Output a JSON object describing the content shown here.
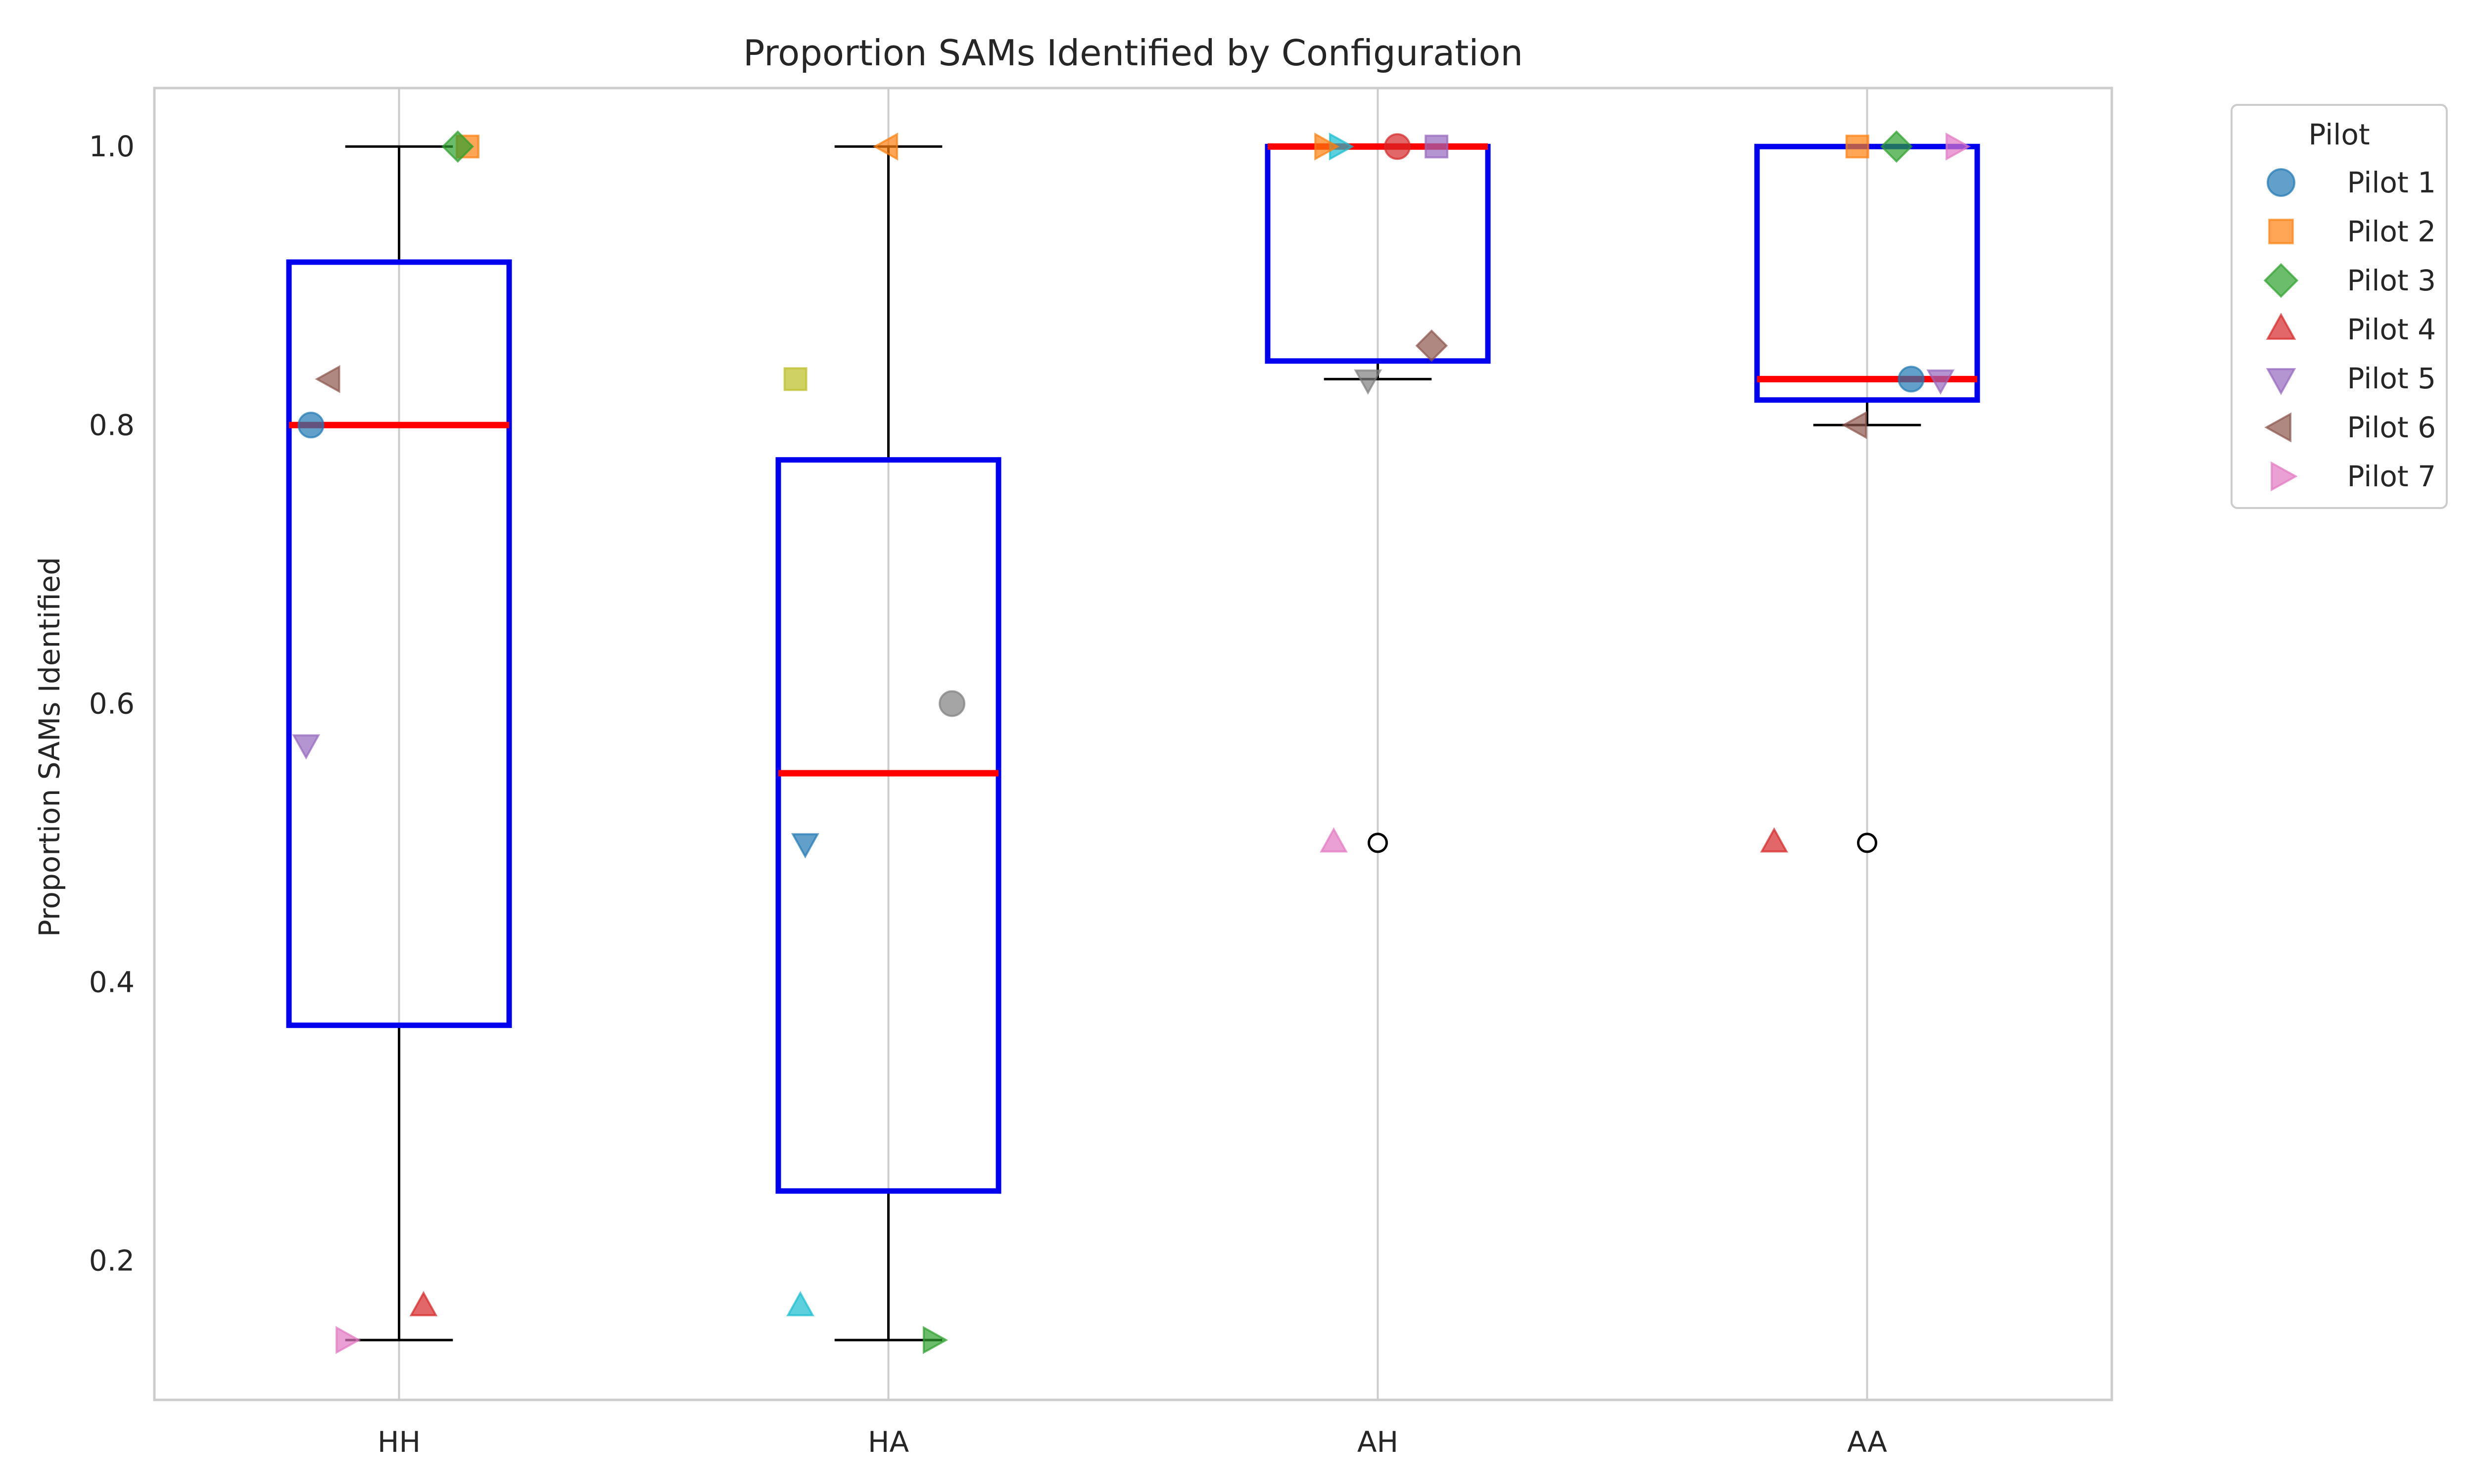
{
  "chart_data": {
    "type": "box",
    "title": "Proportion SAMs Identified by Configuration",
    "xlabel": "",
    "ylabel": "Proportion SAMs Identified",
    "categories": [
      "HH",
      "HA",
      "AH",
      "AA"
    ],
    "ylim": [
      0.1,
      1.042
    ],
    "yticks": [
      0.2,
      0.4,
      0.6,
      0.8,
      1.0
    ],
    "ytick_labels": [
      "0.2",
      "0.4",
      "0.6",
      "0.8",
      "1.0"
    ],
    "grid": "vertical",
    "legend": {
      "title": "Pilot",
      "placement": "outside-top-right"
    },
    "boxes": [
      {
        "category": "HH",
        "q1": 0.369,
        "median": 0.8,
        "q3": 0.917,
        "whisker_low": 0.143,
        "whisker_high": 1.0,
        "outliers": []
      },
      {
        "category": "HA",
        "q1": 0.25,
        "median": 0.55,
        "q3": 0.775,
        "whisker_low": 0.143,
        "whisker_high": 1.0,
        "outliers": []
      },
      {
        "category": "AH",
        "q1": 0.846,
        "median": 1.0,
        "q3": 1.0,
        "whisker_low": 0.833,
        "whisker_high": 1.0,
        "outliers": [
          0.5
        ]
      },
      {
        "category": "AA",
        "q1": 0.818,
        "median": 0.833,
        "q3": 1.0,
        "whisker_low": 0.8,
        "whisker_high": 1.0,
        "outliers": [
          0.5
        ]
      }
    ],
    "series": [
      {
        "name": "Pilot 1",
        "marker": "circle"
      },
      {
        "name": "Pilot 2",
        "marker": "square"
      },
      {
        "name": "Pilot 3",
        "marker": "diamond"
      },
      {
        "name": "Pilot 4",
        "marker": "triangle-up"
      },
      {
        "name": "Pilot 5",
        "marker": "triangle-down"
      },
      {
        "name": "Pilot 6",
        "marker": "triangle-left"
      },
      {
        "name": "Pilot 7",
        "marker": "triangle-right"
      }
    ],
    "points": [
      {
        "category": "HH",
        "y": 0.8,
        "marker": "circle",
        "color": "#1f77b4",
        "jitter": -0.18
      },
      {
        "category": "HH",
        "y": 1.0,
        "marker": "square",
        "color": "#ff7f0e",
        "jitter": 0.14
      },
      {
        "category": "HH",
        "y": 1.0,
        "marker": "diamond",
        "color": "#2ca02c",
        "jitter": 0.12
      },
      {
        "category": "HH",
        "y": 0.167,
        "marker": "triangle-up",
        "color": "#d62728",
        "jitter": 0.05
      },
      {
        "category": "HH",
        "y": 0.571,
        "marker": "triangle-down",
        "color": "#9467bd",
        "jitter": -0.19
      },
      {
        "category": "HH",
        "y": 0.833,
        "marker": "triangle-left",
        "color": "#8c564b",
        "jitter": -0.14
      },
      {
        "category": "HH",
        "y": 0.143,
        "marker": "triangle-right",
        "color": "#e377c2",
        "jitter": -0.11
      },
      {
        "category": "HA",
        "y": 0.5,
        "marker": "triangle-down",
        "color": "#1f77b4",
        "jitter": -0.17
      },
      {
        "category": "HA",
        "y": 1.0,
        "marker": "triangle-left",
        "color": "#ff7f0e",
        "jitter": 0.0
      },
      {
        "category": "HA",
        "y": 0.143,
        "marker": "triangle-right",
        "color": "#2ca02c",
        "jitter": 0.09
      },
      {
        "category": "HA",
        "y": 0.6,
        "marker": "circle",
        "color": "#7f7f7f",
        "jitter": 0.13
      },
      {
        "category": "HA",
        "y": 0.833,
        "marker": "square",
        "color": "#bcbd22",
        "jitter": -0.19
      },
      {
        "category": "HA",
        "y": 0.167,
        "marker": "triangle-up",
        "color": "#17becf",
        "jitter": -0.18
      },
      {
        "category": "AH",
        "y": 1.0,
        "marker": "circle",
        "color": "#d62728",
        "jitter": 0.04
      },
      {
        "category": "AH",
        "y": 1.0,
        "marker": "square",
        "color": "#9467bd",
        "jitter": 0.12
      },
      {
        "category": "AH",
        "y": 0.857,
        "marker": "diamond",
        "color": "#8c564b",
        "jitter": 0.11
      },
      {
        "category": "AH",
        "y": 0.833,
        "marker": "triangle-down",
        "color": "#7f7f7f",
        "jitter": -0.02
      },
      {
        "category": "AH",
        "y": 0.5,
        "marker": "triangle-up",
        "color": "#e377c2",
        "jitter": -0.09
      },
      {
        "category": "AH",
        "y": 1.0,
        "marker": "triangle-right",
        "color": "#17becf",
        "jitter": -0.08
      },
      {
        "category": "AH",
        "y": 1.0,
        "marker": "triangle-right",
        "color": "#ff7f0e",
        "jitter": -0.11
      },
      {
        "category": "AA",
        "y": 0.833,
        "marker": "circle",
        "color": "#1f77b4",
        "jitter": 0.09
      },
      {
        "category": "AA",
        "y": 1.0,
        "marker": "square",
        "color": "#ff7f0e",
        "jitter": -0.02
      },
      {
        "category": "AA",
        "y": 1.0,
        "marker": "diamond",
        "color": "#2ca02c",
        "jitter": 0.06
      },
      {
        "category": "AA",
        "y": 0.5,
        "marker": "triangle-up",
        "color": "#d62728",
        "jitter": -0.19
      },
      {
        "category": "AA",
        "y": 0.833,
        "marker": "triangle-down",
        "color": "#9467bd",
        "jitter": 0.15
      },
      {
        "category": "AA",
        "y": 0.8,
        "marker": "triangle-left",
        "color": "#8c564b",
        "jitter": -0.02
      },
      {
        "category": "AA",
        "y": 1.0,
        "marker": "triangle-right",
        "color": "#e377c2",
        "jitter": 0.18
      }
    ],
    "colors": {
      "box": "#0000ee",
      "median": "#ff0000",
      "whisker": "#000000",
      "grid": "#cccccc",
      "spine": "#cccccc",
      "legend": [
        "#1f77b4",
        "#ff7f0e",
        "#2ca02c",
        "#d62728",
        "#9467bd",
        "#8c564b",
        "#e377c2"
      ]
    }
  }
}
